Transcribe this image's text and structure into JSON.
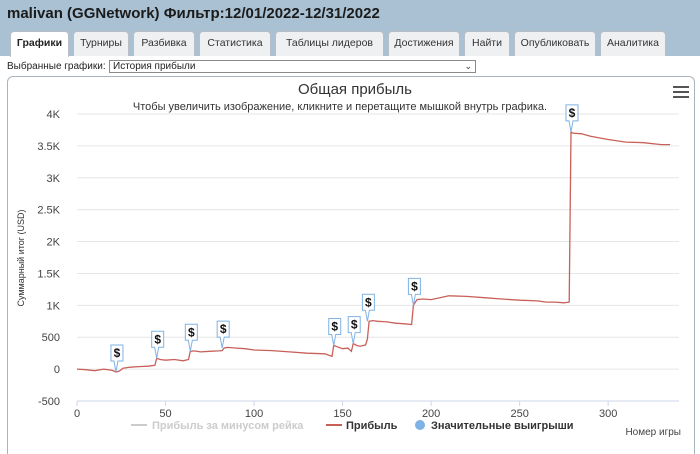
{
  "header": {
    "title": "malivan (GGNetwork) Фильтр:12/01/2022-12/31/2022"
  },
  "tabs": [
    {
      "label": "Графики",
      "active": true
    },
    {
      "label": "Турниры",
      "active": false
    },
    {
      "label": "Разбивка",
      "active": false
    },
    {
      "label": "Статистика",
      "active": false
    },
    {
      "label": "Таблицы лидеров",
      "active": false
    },
    {
      "label": "Достижения",
      "active": false
    },
    {
      "label": "Найти",
      "active": false
    },
    {
      "label": "Опубликовать",
      "active": false
    },
    {
      "label": "Аналитика",
      "active": false
    }
  ],
  "selector": {
    "label": "Выбранные графики:",
    "value": "История прибыли"
  },
  "chart_data": {
    "type": "line",
    "title": "Общая прибыль",
    "subtitle": "Чтобы увеличить изображение, кликните и перетащите мышкой внутрь графика.",
    "xlabel": "Номер игры",
    "ylabel": "Суммарный итог (USD)",
    "xlim": [
      0,
      340
    ],
    "ylim": [
      -500,
      4000
    ],
    "x_ticks": [
      0,
      50,
      100,
      150,
      200,
      250,
      300
    ],
    "x_tick_labels": [
      "0",
      "50",
      "100",
      "150",
      "200",
      "250",
      "300"
    ],
    "y_ticks": [
      -500,
      0,
      500,
      1000,
      1500,
      2000,
      2500,
      3000,
      3500,
      4000
    ],
    "y_tick_labels": [
      "-500",
      "0",
      "500",
      "1K",
      "1.5K",
      "2K",
      "2.5K",
      "3K",
      "3.5K",
      "4K"
    ],
    "grid": true,
    "series": [
      {
        "name": "Прибыль",
        "color": "#c8605a",
        "x": [
          0,
          5,
          10,
          15,
          20,
          22,
          24,
          26,
          30,
          35,
          40,
          44,
          45,
          47,
          50,
          55,
          60,
          63,
          64,
          66,
          70,
          75,
          80,
          82,
          83,
          85,
          90,
          95,
          100,
          110,
          120,
          130,
          140,
          144,
          145,
          147,
          150,
          153,
          155,
          156,
          158,
          160,
          163,
          164,
          165,
          167,
          170,
          175,
          180,
          185,
          189,
          190,
          192,
          195,
          200,
          205,
          210,
          220,
          230,
          240,
          250,
          260,
          265,
          270,
          275,
          278,
          279,
          280,
          285,
          290,
          300,
          310,
          320,
          330,
          335
        ],
        "values": [
          0,
          -10,
          -25,
          0,
          -20,
          -45,
          -30,
          15,
          30,
          40,
          45,
          60,
          170,
          150,
          140,
          150,
          130,
          150,
          280,
          285,
          270,
          280,
          285,
          290,
          330,
          340,
          330,
          320,
          300,
          290,
          270,
          250,
          240,
          200,
          370,
          350,
          320,
          330,
          280,
          400,
          370,
          360,
          380,
          470,
          750,
          760,
          750,
          740,
          720,
          710,
          700,
          1000,
          1090,
          1100,
          1090,
          1120,
          1150,
          1140,
          1120,
          1100,
          1080,
          1070,
          1050,
          1050,
          1040,
          1050,
          3720,
          3700,
          3690,
          3650,
          3600,
          3560,
          3550,
          3520,
          3520
        ]
      }
    ],
    "significant_wins": {
      "name": "Значительные выигрыши",
      "color": "#7fb2e5",
      "label": "$",
      "x": [
        22,
        45,
        64,
        82,
        145,
        156,
        164,
        190,
        279
      ],
      "values": [
        -45,
        170,
        280,
        330,
        370,
        400,
        750,
        1000,
        3720
      ]
    },
    "legend": {
      "placement": "bottom",
      "items": [
        {
          "name": "Прибыль за минусом рейка",
          "color": "#cccccc",
          "hidden": true
        },
        {
          "name": "Прибыль",
          "color": "#c8605a",
          "hidden": false
        },
        {
          "name": "Значительные выигрыши",
          "color": "#7fb2e5",
          "hidden": false
        }
      ]
    }
  }
}
